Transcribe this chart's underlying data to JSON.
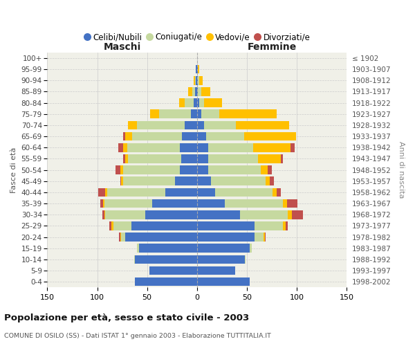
{
  "age_groups": [
    "100+",
    "95-99",
    "90-94",
    "85-89",
    "80-84",
    "75-79",
    "70-74",
    "65-69",
    "60-64",
    "55-59",
    "50-54",
    "45-49",
    "40-44",
    "35-39",
    "30-34",
    "25-29",
    "20-24",
    "15-19",
    "10-14",
    "5-9",
    "0-4"
  ],
  "birth_years": [
    "≤ 1902",
    "1903-1907",
    "1908-1912",
    "1913-1917",
    "1918-1922",
    "1923-1927",
    "1928-1932",
    "1933-1937",
    "1938-1942",
    "1943-1947",
    "1948-1952",
    "1953-1957",
    "1958-1962",
    "1963-1967",
    "1968-1972",
    "1973-1977",
    "1978-1982",
    "1983-1987",
    "1988-1992",
    "1993-1997",
    "1998-2002"
  ],
  "maschi_celibi": [
    0,
    1,
    1,
    2,
    3,
    6,
    12,
    15,
    17,
    16,
    17,
    22,
    32,
    45,
    52,
    66,
    72,
    58,
    62,
    48,
    62
  ],
  "maschi_coniugati": [
    0,
    0,
    1,
    3,
    9,
    32,
    48,
    50,
    53,
    53,
    57,
    52,
    58,
    48,
    40,
    18,
    4,
    2,
    1,
    0,
    0
  ],
  "maschi_vedovi": [
    0,
    0,
    1,
    4,
    6,
    9,
    9,
    7,
    4,
    3,
    3,
    2,
    2,
    1,
    1,
    2,
    1,
    0,
    0,
    0,
    0
  ],
  "maschi_divorziati": [
    0,
    0,
    0,
    0,
    0,
    0,
    0,
    2,
    5,
    2,
    5,
    1,
    7,
    3,
    2,
    2,
    1,
    0,
    0,
    0,
    0
  ],
  "femmine_nubili": [
    0,
    1,
    1,
    1,
    2,
    4,
    7,
    9,
    11,
    11,
    11,
    14,
    18,
    28,
    43,
    58,
    58,
    53,
    48,
    38,
    53
  ],
  "femmine_coniugate": [
    0,
    0,
    1,
    3,
    5,
    18,
    32,
    38,
    45,
    50,
    53,
    55,
    58,
    58,
    48,
    28,
    9,
    2,
    1,
    0,
    0
  ],
  "femmine_vedove": [
    0,
    1,
    4,
    9,
    18,
    58,
    53,
    52,
    38,
    23,
    7,
    4,
    4,
    4,
    4,
    3,
    1,
    0,
    0,
    0,
    0
  ],
  "femmine_divorziate": [
    0,
    0,
    0,
    0,
    0,
    0,
    0,
    0,
    4,
    2,
    4,
    4,
    4,
    11,
    11,
    2,
    1,
    0,
    0,
    0,
    0
  ],
  "color_celibi": "#4472c4",
  "color_coniugati": "#c6d9a0",
  "color_vedovi": "#ffc000",
  "color_divorziati": "#c0504d",
  "title": "Popolazione per età, sesso e stato civile - 2003",
  "subtitle": "COMUNE DI OSILO (SS) - Dati ISTAT 1° gennaio 2003 - Elaborazione TUTTITALIA.IT",
  "label_maschi": "Maschi",
  "label_femmine": "Femmine",
  "ylabel_left": "Fasce di età",
  "ylabel_right": "Anni di nascita",
  "legend_labels": [
    "Celibi/Nubili",
    "Coniugati/e",
    "Vedovi/e",
    "Divorziati/e"
  ],
  "xlim": 150,
  "bg_plot": "#f0f0e8",
  "bg_fig": "#ffffff"
}
